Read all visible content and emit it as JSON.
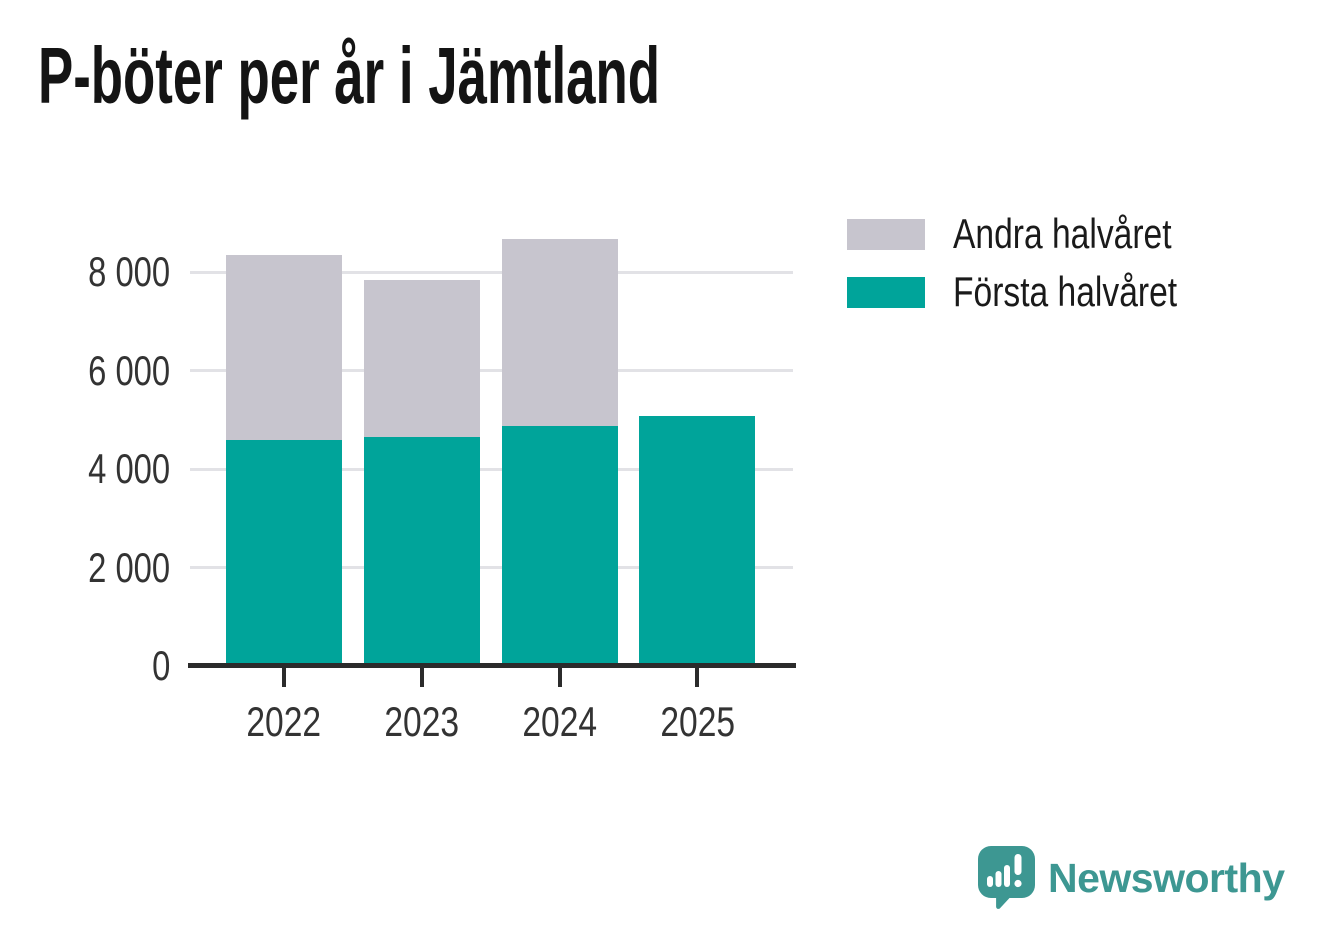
{
  "title": "P-böter per år i Jämtland",
  "legend": {
    "items": [
      {
        "label": "Andra halvåret",
        "color": "#c7c5ce"
      },
      {
        "label": "Första halvåret",
        "color": "#00a49a"
      }
    ]
  },
  "chart_data": {
    "type": "bar",
    "stacked": true,
    "title": "P-böter per år i Jämtland",
    "categories": [
      "2022",
      "2023",
      "2024",
      "2025"
    ],
    "series": [
      {
        "name": "Första halvåret",
        "color": "#00a49a",
        "values": [
          4600,
          4660,
          4880,
          5080
        ]
      },
      {
        "name": "Andra halvåret",
        "color": "#c7c5ce",
        "values": [
          3760,
          3190,
          3800,
          null
        ]
      }
    ],
    "totals": [
      8360,
      7850,
      8680,
      5080
    ],
    "xlabel": "",
    "ylabel": "",
    "ylim": [
      0,
      8800
    ],
    "yticks": [
      {
        "value": 0,
        "label": "0"
      },
      {
        "value": 2000,
        "label": "2 000"
      },
      {
        "value": 4000,
        "label": "4 000"
      },
      {
        "value": 6000,
        "label": "6 000"
      },
      {
        "value": 8000,
        "label": "8 000"
      }
    ],
    "grid": true,
    "legend_position": "top-right"
  },
  "branding": {
    "wordmark": "Newsworthy",
    "color": "#3d9792",
    "icon": "newsworthy-chart-bubble-icon"
  },
  "colors": {
    "first_half": "#00a49a",
    "second_half": "#c7c5ce",
    "axis": "#2b2b2b",
    "gridline": "#e2e2e6",
    "title_text": "#141414",
    "tick_text": "#333333"
  }
}
